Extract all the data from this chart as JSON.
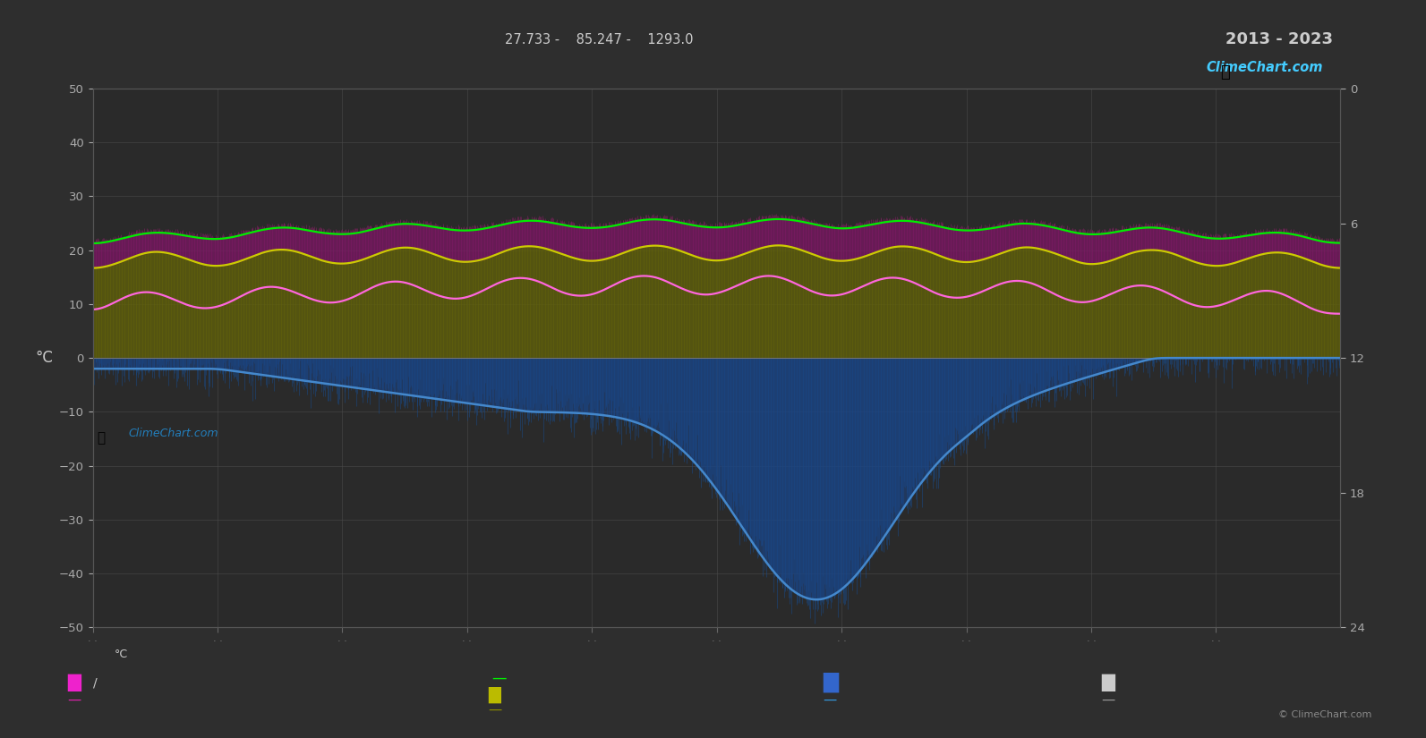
{
  "title": "2013 - 2023",
  "subtitle_top": "27.733 -    85.247 -    1293.0",
  "bg_color": "#2e2e2e",
  "plot_bg_color": "#2a2a2a",
  "grid_color": "#4a4a4a",
  "text_color": "#cccccc",
  "left_ylabel": "°C",
  "ylim": [
    -50,
    50
  ],
  "n_days": 3650,
  "green_color": "#00ee00",
  "yellow_color": "#cccc00",
  "pink_color": "#ff66dd",
  "blue_color": "#4488cc",
  "blue_fill_color": "#2255aa",
  "olive_color": "#888820",
  "magenta_fill_color": "#993399",
  "tick_label_color": "#aaaaaa",
  "copyright_text": "© ClimeChart.com",
  "right_ytick_labels": [
    "0",
    "6",
    "12",
    "18",
    "24"
  ],
  "right_ytick_positions": [
    0,
    10,
    20,
    30,
    40
  ],
  "right_ylim": [
    40,
    0
  ]
}
